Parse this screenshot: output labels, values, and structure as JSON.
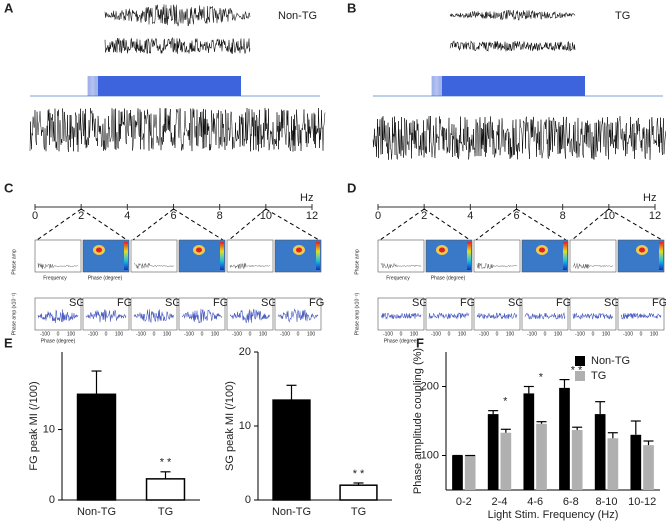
{
  "panels": {
    "A": {
      "label": "A",
      "group": "Non-TG"
    },
    "B": {
      "label": "B",
      "group": "TG"
    },
    "C": {
      "label": "C",
      "unit": "Hz",
      "ticks": [
        0,
        2,
        4,
        6,
        8,
        10,
        12
      ],
      "y_label_top": "Phase amp",
      "y_label_bottom": "Phase amp (x10⁻²)",
      "x_label_top": "Frequency",
      "x_label_mid": "Phase (degree)",
      "x_label_bottom": "Phase (degree)",
      "inset_labels": [
        "SG",
        "FG",
        "SG",
        "FG",
        "SG",
        "FG"
      ],
      "inset_ticks": [
        "-100",
        "0",
        "100"
      ]
    },
    "D": {
      "label": "D",
      "unit": "Hz",
      "ticks": [
        0,
        2,
        4,
        6,
        8,
        10,
        12
      ],
      "y_label_top": "Phase amp",
      "y_label_bottom": "Phase amp (x10⁻²)",
      "x_label_top": "Frequency",
      "x_label_mid": "Phase (degree)",
      "x_label_bottom": "Phase (degree)",
      "inset_labels": [
        "SG",
        "FG",
        "SG",
        "FG",
        "SG",
        "FG"
      ],
      "inset_ticks": [
        "-100",
        "0",
        "100"
      ]
    },
    "E": {
      "label": "E"
    },
    "F": {
      "label": "F"
    }
  },
  "chart_data": [
    {
      "type": "bar",
      "y_label": "FG peak MI (/100)",
      "categories": [
        "Non-TG",
        "TG"
      ],
      "values": [
        15,
        3
      ],
      "errors": [
        3.3,
        1
      ],
      "colors": [
        "#000000",
        "#ffffff"
      ],
      "ylim": [
        0,
        21
      ],
      "yticks": [
        0,
        10
      ],
      "annotations": [
        {
          "text": "* *",
          "category": "TG"
        }
      ]
    },
    {
      "type": "bar",
      "y_label": "SG peak MI (/100)",
      "categories": [
        "Non-TG",
        "TG"
      ],
      "values": [
        13.5,
        2
      ],
      "errors": [
        2,
        0.3
      ],
      "colors": [
        "#000000",
        "#ffffff"
      ],
      "ylim": [
        0,
        20
      ],
      "yticks": [
        0,
        10,
        20
      ],
      "annotations": [
        {
          "text": "* *",
          "category": "TG"
        }
      ]
    },
    {
      "type": "grouped_bar",
      "y_label": "Phase amplitude coupling (%)",
      "x_label": "Light Stim. Frequency (Hz)",
      "categories": [
        "0-2",
        "2-4",
        "4-6",
        "6-8",
        "8-10",
        "10-12"
      ],
      "series": [
        {
          "name": "Non-TG",
          "color": "#000000",
          "values": [
            100,
            160,
            190,
            198,
            160,
            130
          ],
          "errors": [
            0,
            5,
            10,
            12,
            18,
            20
          ]
        },
        {
          "name": "TG",
          "color": "#b0b0b0",
          "values": [
            100,
            133,
            146,
            137,
            125,
            115
          ],
          "errors": [
            0,
            5,
            3,
            4,
            8,
            6
          ]
        }
      ],
      "ylim": [
        50,
        250
      ],
      "yticks": [
        100,
        200
      ],
      "legend": "top right",
      "annotations": [
        {
          "text": "*",
          "category": "2-4"
        },
        {
          "text": "*",
          "category": "4-6"
        },
        {
          "text": "* *",
          "category": "6-8"
        }
      ]
    }
  ]
}
